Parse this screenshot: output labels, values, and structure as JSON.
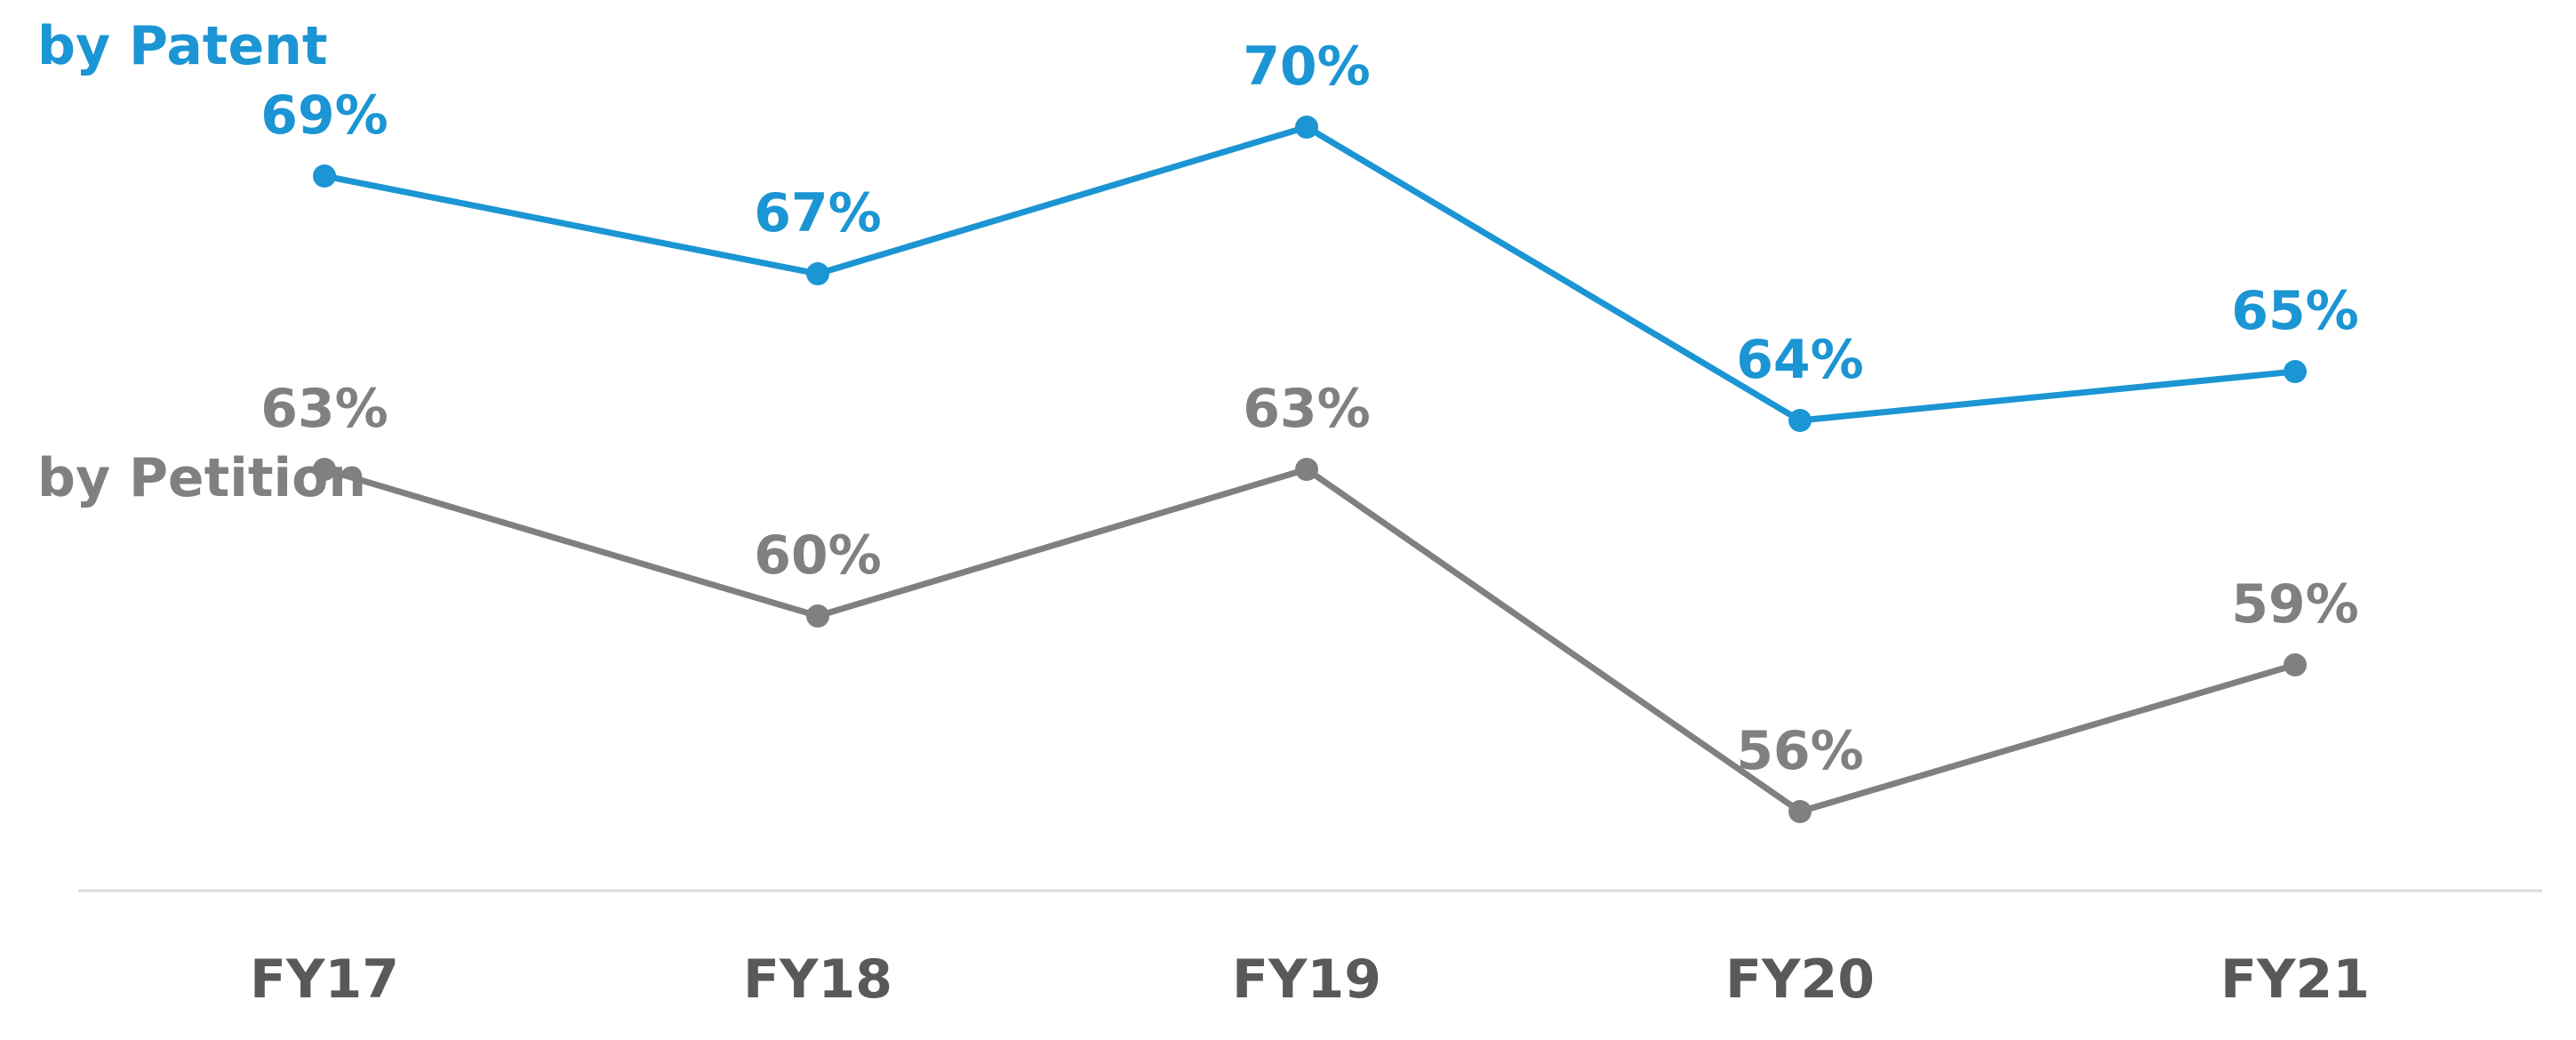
{
  "chart_data": {
    "type": "line",
    "categories": [
      "FY17",
      "FY18",
      "FY19",
      "FY20",
      "FY21"
    ],
    "series": [
      {
        "key": "patent",
        "name": "by Patent",
        "values": [
          69,
          67,
          70,
          64,
          65
        ],
        "labels": [
          "69%",
          "67%",
          "70%",
          "64%",
          "65%"
        ],
        "color": "#1b95d3"
      },
      {
        "key": "petition",
        "name": "by Petition",
        "values": [
          63,
          60,
          63,
          56,
          59
        ],
        "labels": [
          "63%",
          "60%",
          "63%",
          "56%",
          "59%"
        ],
        "color": "#808080"
      }
    ],
    "grid": false,
    "legend": "inline-left",
    "axis_color": "#d9d9d9",
    "tick_color": "#595959"
  }
}
